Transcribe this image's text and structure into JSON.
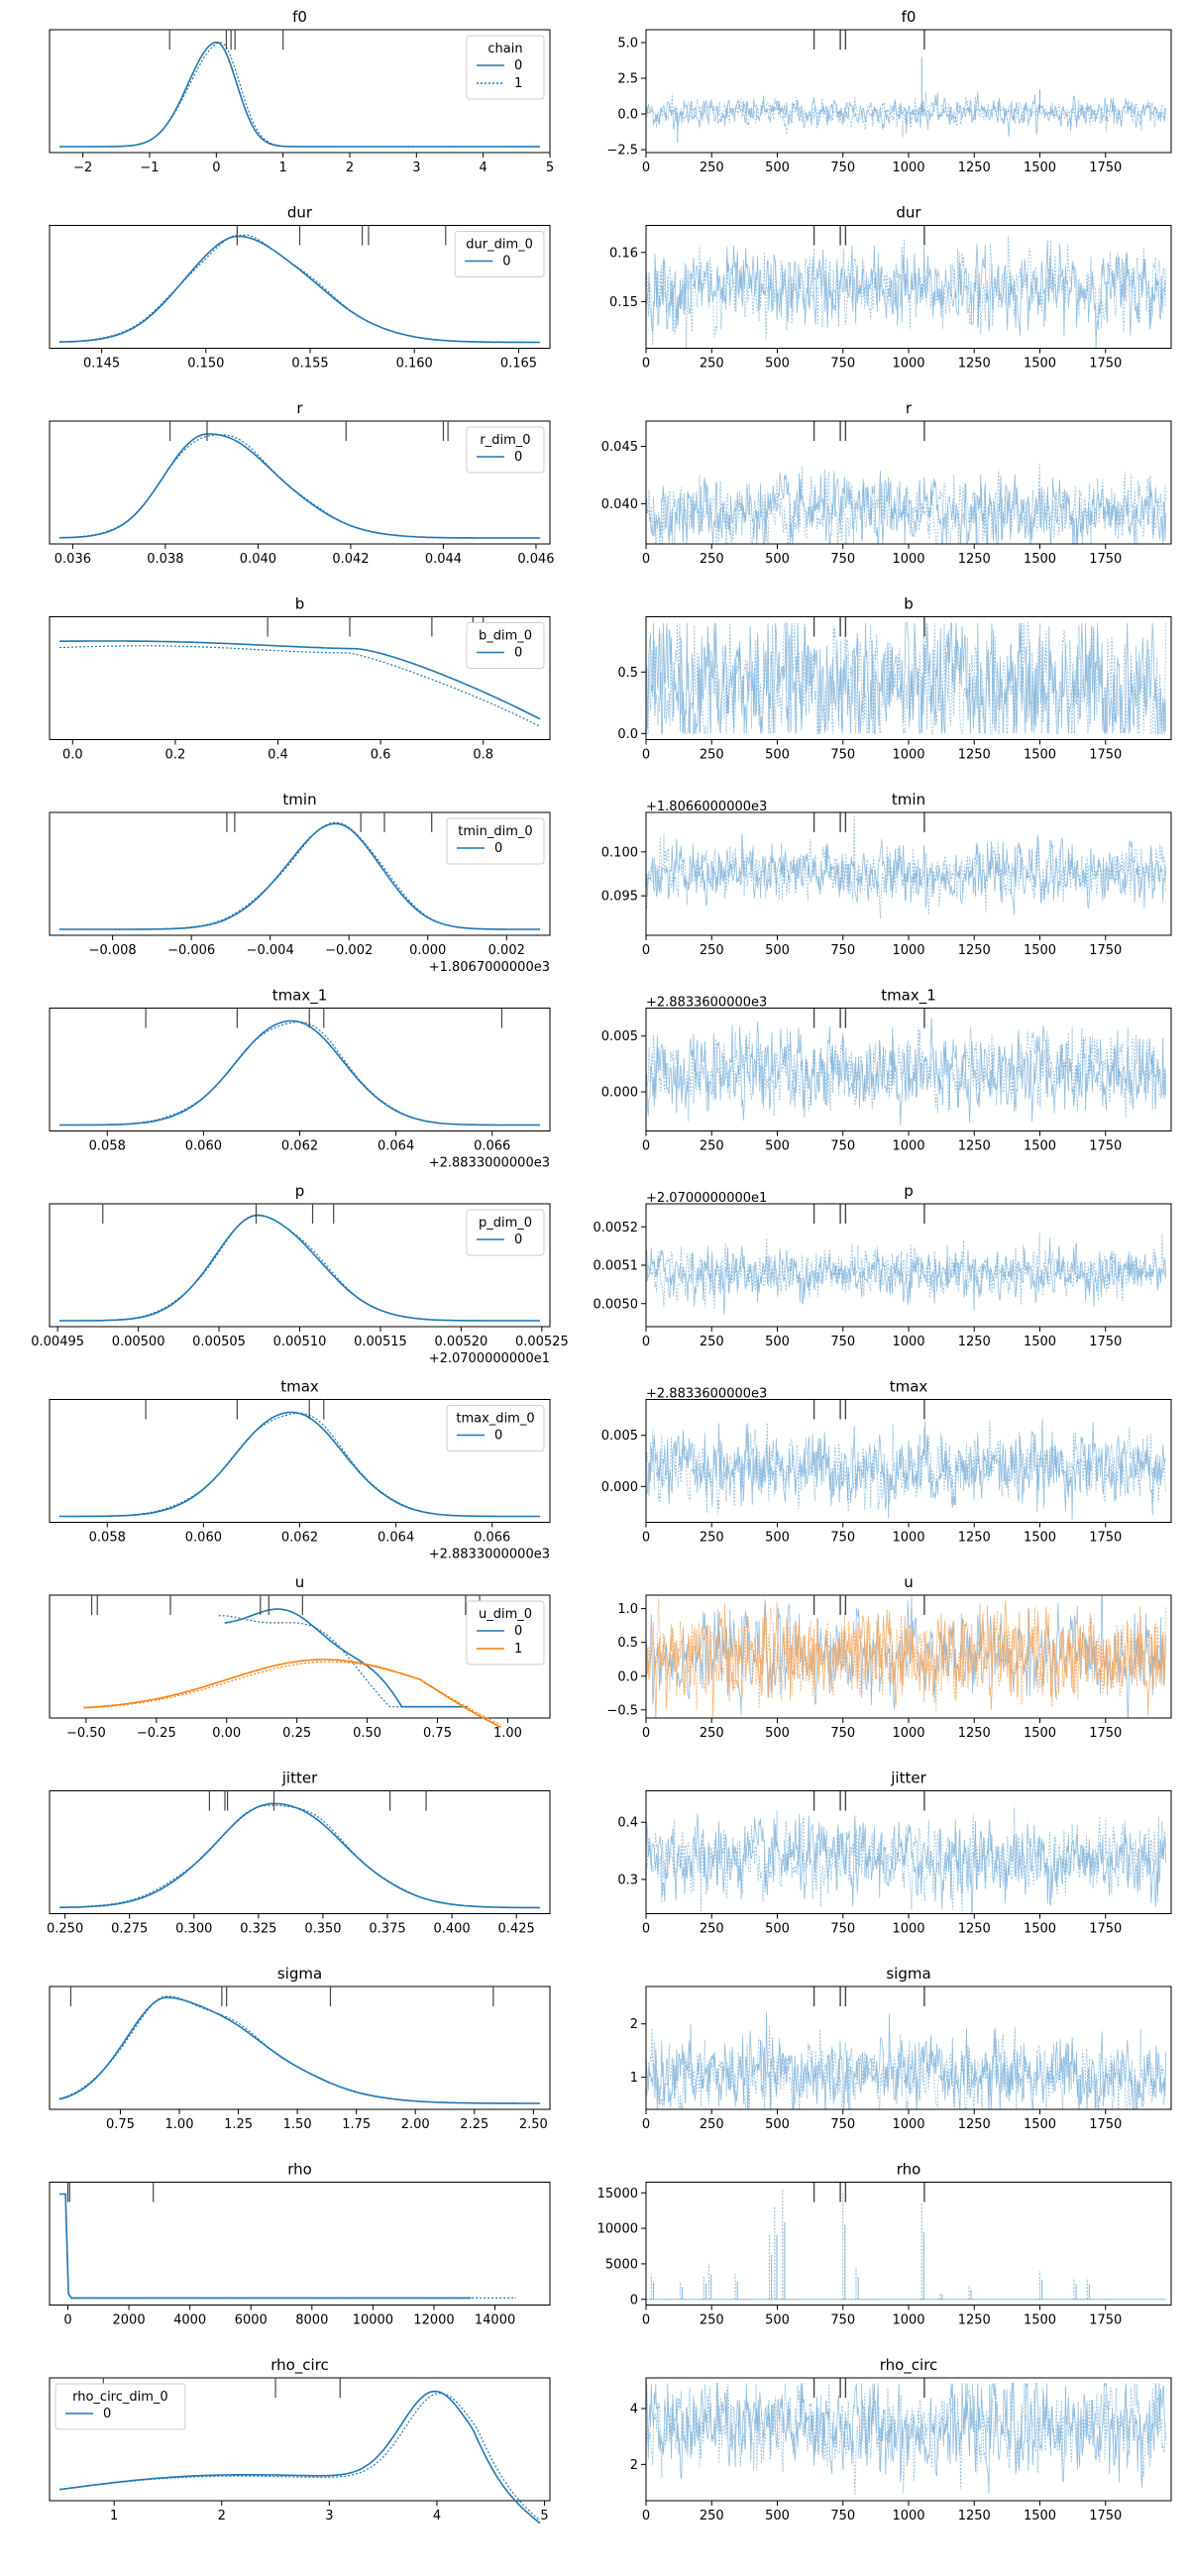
{
  "colors": {
    "c0": "#1f77b4",
    "c1": "#ff7f0e",
    "trace": "#7fb2d9",
    "tick": "#444444"
  },
  "chart_data": [
    {
      "type": "line",
      "name": "f0",
      "title": "f0",
      "kde": {
        "xlim": [
          -2.5,
          5.0
        ],
        "xticks": [
          -2,
          -1,
          0,
          1,
          2,
          3,
          4,
          5
        ],
        "xtick_labels": [
          "−2",
          "−1",
          "0",
          "1",
          "2",
          "3",
          "4",
          "5"
        ],
        "ylim": [
          0,
          1
        ],
        "peak_x": 0.0,
        "sd": 0.42,
        "right_sd": 0.3,
        "ref_x": [
          -0.7,
          0.15,
          0.22,
          0.28,
          1.0
        ],
        "series": [
          {
            "x": [
              -2.4,
              -1.5,
              -1.0,
              -0.5,
              -0.2,
              0.0,
              0.2,
              0.4,
              0.8,
              1.2,
              2.0,
              3.0,
              4.0,
              4.8
            ],
            "y": [
              0,
              0.01,
              0.05,
              0.28,
              0.75,
              1.0,
              0.85,
              0.55,
              0.15,
              0.04,
              0.01,
              0,
              0,
              0
            ]
          }
        ]
      },
      "legend": {
        "title": "chain",
        "entries": [
          "0",
          "1"
        ],
        "pos": "top-right"
      },
      "trace": {
        "xlim": [
          0,
          2000
        ],
        "xticks": [
          0,
          250,
          500,
          750,
          1000,
          1250,
          1500,
          1750
        ],
        "ylim": [
          -2.7,
          5.9
        ],
        "yticks": [
          -2.5,
          0.0,
          2.5,
          5.0
        ],
        "ytick_labels": [
          "−2.5",
          "0.0",
          "2.5",
          "5.0"
        ],
        "mean": 0.1,
        "spread": 0.45,
        "spikes": [
          {
            "x": 1050,
            "y": 4.0
          },
          {
            "x": 120,
            "y": -2.0
          },
          {
            "x": 1500,
            "y": 1.7
          }
        ],
        "ref_x": [
          640,
          740,
          760,
          1060
        ]
      }
    },
    {
      "type": "line",
      "name": "dur",
      "title": "dur",
      "kde": {
        "xlim": [
          0.1425,
          0.1665
        ],
        "xticks": [
          0.145,
          0.15,
          0.155,
          0.16,
          0.165
        ],
        "xtick_labels": [
          "0.145",
          "0.150",
          "0.155",
          "0.160",
          "0.165"
        ],
        "peak_x": 0.1515,
        "sd": 0.0025,
        "right_sd": 0.0035,
        "ref_x": [
          0.1515,
          0.1545,
          0.1575,
          0.1578,
          0.1615
        ]
      },
      "legend": {
        "title": "dur_dim_0",
        "entries": [
          "0"
        ],
        "pos": "top-right"
      },
      "trace": {
        "xlim": [
          0,
          2000
        ],
        "xticks": [
          0,
          250,
          500,
          750,
          1000,
          1250,
          1500,
          1750
        ],
        "ylim": [
          0.1405,
          0.1655
        ],
        "yticks": [
          0.15,
          0.16
        ],
        "ytick_labels": [
          "0.15",
          "0.16"
        ],
        "mean": 0.1525,
        "spread": 0.0035,
        "spikes": [],
        "ref_x": [
          640,
          740,
          760,
          1060
        ]
      }
    },
    {
      "type": "line",
      "name": "r",
      "title": "r",
      "kde": {
        "xlim": [
          0.0355,
          0.0463
        ],
        "xticks": [
          0.036,
          0.038,
          0.04,
          0.042,
          0.044,
          0.046
        ],
        "xtick_labels": [
          "0.036",
          "0.038",
          "0.040",
          "0.042",
          "0.044",
          "0.046"
        ],
        "peak_x": 0.0389,
        "sd": 0.0009,
        "right_sd": 0.0015,
        "ref_x": [
          0.0381,
          0.0389,
          0.0419,
          0.044,
          0.0441
        ]
      },
      "legend": {
        "title": "r_dim_0",
        "entries": [
          "0"
        ],
        "pos": "top-right"
      },
      "trace": {
        "xlim": [
          0,
          2000
        ],
        "xticks": [
          0,
          250,
          500,
          750,
          1000,
          1250,
          1500,
          1750
        ],
        "ylim": [
          0.0365,
          0.0472
        ],
        "yticks": [
          0.04,
          0.045
        ],
        "ytick_labels": [
          "0.040",
          "0.045"
        ],
        "mean": 0.0393,
        "spread": 0.0014,
        "spikes": [],
        "ref_x": [
          640,
          740,
          760,
          1060
        ]
      }
    },
    {
      "type": "line",
      "name": "b",
      "title": "b",
      "kde": {
        "xlim": [
          -0.045,
          0.93
        ],
        "xticks": [
          0.0,
          0.2,
          0.4,
          0.6,
          0.8
        ],
        "xtick_labels": [
          "0.0",
          "0.2",
          "0.4",
          "0.6",
          "0.8"
        ],
        "shape": "flat",
        "ref_x": [
          0.38,
          0.54,
          0.7,
          0.78,
          0.8
        ]
      },
      "legend": {
        "title": "b_dim_0",
        "entries": [
          "0"
        ],
        "pos": "top-right"
      },
      "trace": {
        "xlim": [
          0,
          2000
        ],
        "xticks": [
          0,
          250,
          500,
          750,
          1000,
          1250,
          1500,
          1750
        ],
        "ylim": [
          -0.05,
          0.95
        ],
        "yticks": [
          0.0,
          0.5
        ],
        "ytick_labels": [
          "0.0",
          "0.5"
        ],
        "mean": 0.38,
        "spread": 0.27,
        "clip": [
          0.0,
          0.9
        ],
        "spikes": [],
        "ref_x": [
          640,
          740,
          760,
          1060
        ]
      }
    },
    {
      "type": "line",
      "name": "tmin",
      "title": "tmin",
      "kde": {
        "xlim": [
          -0.0096,
          0.0031
        ],
        "xticks": [
          -0.008,
          -0.006,
          -0.004,
          -0.002,
          0.0,
          0.002
        ],
        "xtick_labels": [
          "−0.008",
          "−0.006",
          "−0.004",
          "−0.002",
          "0.000",
          "0.002"
        ],
        "offset": "+1.8067000000e3",
        "peak_x": -0.0023,
        "sd": 0.0013,
        "right_sd": 0.0011,
        "ref_x": [
          -0.0051,
          -0.0049,
          -0.0017,
          -0.0011,
          0.0001
        ]
      },
      "legend": {
        "title": "tmin_dim_0",
        "entries": [
          "0"
        ],
        "pos": "top-right"
      },
      "trace": {
        "xlim": [
          0,
          2000
        ],
        "xticks": [
          0,
          250,
          500,
          750,
          1000,
          1250,
          1500,
          1750
        ],
        "ylim": [
          0.0905,
          0.1045
        ],
        "yticks": [
          0.095,
          0.1
        ],
        "ytick_labels": [
          "0.095",
          "0.100"
        ],
        "offset": "+1.8066000000e3",
        "mean": 0.0975,
        "spread": 0.0015,
        "spikes": [],
        "ref_x": [
          640,
          740,
          760,
          1060
        ]
      }
    },
    {
      "type": "line",
      "name": "tmax_1",
      "title": "tmax_1",
      "kde": {
        "xlim": [
          0.0568,
          0.0672
        ],
        "xticks": [
          0.058,
          0.06,
          0.062,
          0.064,
          0.066
        ],
        "xtick_labels": [
          "0.058",
          "0.060",
          "0.062",
          "0.064",
          "0.066"
        ],
        "offset": "+2.8833000000e3",
        "peak_x": 0.0618,
        "sd": 0.0011,
        "right_sd": 0.0011,
        "ref_x": [
          0.0588,
          0.0607,
          0.0622,
          0.0625,
          0.0662
        ]
      },
      "legend": null,
      "trace": {
        "xlim": [
          0,
          2000
        ],
        "xticks": [
          0,
          250,
          500,
          750,
          1000,
          1250,
          1500,
          1750
        ],
        "ylim": [
          -0.0035,
          0.0075
        ],
        "yticks": [
          0.0,
          0.005
        ],
        "ytick_labels": [
          "0.000",
          "0.005"
        ],
        "offset": "+2.8833600000e3",
        "mean": 0.0018,
        "spread": 0.0016,
        "spikes": [],
        "ref_x": [
          640,
          740,
          760,
          1060
        ]
      }
    },
    {
      "type": "line",
      "name": "p",
      "title": "p",
      "kde": {
        "xlim": [
          0.004945,
          0.005255
        ],
        "xticks": [
          0.00495,
          0.005,
          0.00505,
          0.0051,
          0.00515,
          0.0052,
          0.00525
        ],
        "xtick_labels": [
          "0.00495",
          "0.00500",
          "0.00505",
          "0.00510",
          "0.00515",
          "0.00520",
          "0.00525"
        ],
        "offset": "+2.0700000000e1",
        "peak_x": 0.005075,
        "sd": 2.8e-05,
        "right_sd": 3.5e-05,
        "ref_x": [
          0.004978,
          0.005073,
          0.005108,
          0.005121
        ]
      },
      "legend": {
        "title": "p_dim_0",
        "entries": [
          "0"
        ],
        "pos": "top-right"
      },
      "trace": {
        "xlim": [
          0,
          2000
        ],
        "xticks": [
          0,
          250,
          500,
          750,
          1000,
          1250,
          1500,
          1750
        ],
        "ylim": [
          0.00494,
          0.00526
        ],
        "yticks": [
          0.005,
          0.0051,
          0.0052
        ],
        "ytick_labels": [
          "0.0050",
          "0.0051",
          "0.0052"
        ],
        "offset": "+2.0700000000e1",
        "mean": 0.00508,
        "spread": 3e-05,
        "spikes": [],
        "ref_x": [
          640,
          740,
          760,
          1060
        ]
      }
    },
    {
      "type": "line",
      "name": "tmax",
      "title": "tmax",
      "kde": {
        "xlim": [
          0.0568,
          0.0672
        ],
        "xticks": [
          0.058,
          0.06,
          0.062,
          0.064,
          0.066
        ],
        "xtick_labels": [
          "0.058",
          "0.060",
          "0.062",
          "0.064",
          "0.066"
        ],
        "offset": "+2.8833000000e3",
        "peak_x": 0.0618,
        "sd": 0.0011,
        "right_sd": 0.0011,
        "ref_x": [
          0.0588,
          0.0607,
          0.0622,
          0.0625
        ]
      },
      "legend": {
        "title": "tmax_dim_0",
        "entries": [
          "0"
        ],
        "pos": "top-right"
      },
      "trace": {
        "xlim": [
          0,
          2000
        ],
        "xticks": [
          0,
          250,
          500,
          750,
          1000,
          1250,
          1500,
          1750
        ],
        "ylim": [
          -0.0035,
          0.0085
        ],
        "yticks": [
          0.0,
          0.005
        ],
        "ytick_labels": [
          "0.000",
          "0.005"
        ],
        "offset": "+2.8833600000e3",
        "mean": 0.0018,
        "spread": 0.0016,
        "spikes": [],
        "ref_x": [
          640,
          740,
          760,
          1060
        ]
      }
    },
    {
      "type": "line",
      "name": "u",
      "title": "u",
      "kde": {
        "xlim": [
          -0.63,
          1.15
        ],
        "xticks": [
          -0.5,
          -0.25,
          0.0,
          0.25,
          0.5,
          0.75,
          1.0
        ],
        "xtick_labels": [
          "−0.50",
          "−0.25",
          "0.00",
          "0.25",
          "0.50",
          "0.75",
          "1.00"
        ],
        "shape": "u",
        "ref_x": [
          -0.48,
          -0.46,
          -0.2,
          0.12,
          0.15,
          0.27,
          0.85,
          0.9
        ]
      },
      "legend": {
        "title": "u_dim_0",
        "entries": [
          "0",
          "1"
        ],
        "pos": "top-right"
      },
      "trace": {
        "xlim": [
          0,
          2000
        ],
        "xticks": [
          0,
          250,
          500,
          750,
          1000,
          1250,
          1500,
          1750
        ],
        "ylim": [
          -0.62,
          1.2
        ],
        "yticks": [
          -0.5,
          0.0,
          0.5,
          1.0
        ],
        "ytick_labels": [
          "−0.5",
          "0.0",
          "0.5",
          "1.0"
        ],
        "mean": 0.3,
        "spread": 0.28,
        "two": true,
        "spikes": [],
        "ref_x": [
          640,
          740,
          760,
          1060
        ]
      }
    },
    {
      "type": "line",
      "name": "jitter",
      "title": "jitter",
      "kde": {
        "xlim": [
          0.244,
          0.438
        ],
        "xticks": [
          0.25,
          0.275,
          0.3,
          0.325,
          0.35,
          0.375,
          0.4,
          0.425
        ],
        "xtick_labels": [
          "0.250",
          "0.275",
          "0.300",
          "0.325",
          "0.350",
          "0.375",
          "0.400",
          "0.425"
        ],
        "peak_x": 0.332,
        "sd": 0.024,
        "right_sd": 0.026,
        "ref_x": [
          0.306,
          0.312,
          0.313,
          0.331,
          0.376,
          0.39
        ]
      },
      "legend": null,
      "trace": {
        "xlim": [
          0,
          2000
        ],
        "xticks": [
          0,
          250,
          500,
          750,
          1000,
          1250,
          1500,
          1750
        ],
        "ylim": [
          0.24,
          0.455
        ],
        "yticks": [
          0.3,
          0.4
        ],
        "ytick_labels": [
          "0.3",
          "0.4"
        ],
        "mean": 0.335,
        "spread": 0.03,
        "spikes": [],
        "ref_x": [
          640,
          740,
          760,
          1060
        ]
      }
    },
    {
      "type": "line",
      "name": "sigma",
      "title": "sigma",
      "kde": {
        "xlim": [
          0.45,
          2.57
        ],
        "xticks": [
          0.75,
          1.0,
          1.25,
          1.5,
          1.75,
          2.0,
          2.25,
          2.5
        ],
        "xtick_labels": [
          "0.75",
          "1.00",
          "1.25",
          "1.50",
          "1.75",
          "2.00",
          "2.25",
          "2.50"
        ],
        "peak_x": 0.95,
        "sd": 0.18,
        "right_sd": 0.38,
        "ref_x": [
          0.54,
          1.18,
          1.2,
          1.64,
          2.33
        ]
      },
      "legend": null,
      "trace": {
        "xlim": [
          0,
          2000
        ],
        "xticks": [
          0,
          250,
          500,
          750,
          1000,
          1250,
          1500,
          1750
        ],
        "ylim": [
          0.4,
          2.7
        ],
        "yticks": [
          1,
          2
        ],
        "ytick_labels": [
          "1",
          "2"
        ],
        "mean": 1.05,
        "spread": 0.32,
        "spikes": [],
        "ref_x": [
          640,
          740,
          760,
          1060
        ]
      }
    },
    {
      "type": "line",
      "name": "rho",
      "title": "rho",
      "kde": {
        "xlim": [
          -600,
          15800
        ],
        "xticks": [
          0,
          2000,
          4000,
          6000,
          8000,
          10000,
          12000,
          14000
        ],
        "xtick_labels": [
          "0",
          "2000",
          "4000",
          "6000",
          "8000",
          "10000",
          "12000",
          "14000"
        ],
        "shape": "spike",
        "ref_x": [
          0,
          60,
          2800
        ]
      },
      "legend": null,
      "trace": {
        "xlim": [
          0,
          2000
        ],
        "xticks": [
          0,
          250,
          500,
          750,
          1000,
          1250,
          1500,
          1750
        ],
        "ylim": [
          -800,
          16500
        ],
        "yticks": [
          0,
          5000,
          10000,
          15000
        ],
        "ytick_labels": [
          "0",
          "5000",
          "10000",
          "15000"
        ],
        "mean": 0,
        "spread": 0,
        "bursts": [
          {
            "x": 520,
            "y": 15500
          },
          {
            "x": 470,
            "y": 9000
          },
          {
            "x": 490,
            "y": 13000
          },
          {
            "x": 750,
            "y": 15000
          },
          {
            "x": 1050,
            "y": 13500
          },
          {
            "x": 800,
            "y": 4500
          },
          {
            "x": 240,
            "y": 5000
          },
          {
            "x": 220,
            "y": 3200
          },
          {
            "x": 340,
            "y": 3600
          },
          {
            "x": 1500,
            "y": 4000
          },
          {
            "x": 1630,
            "y": 3000
          },
          {
            "x": 1680,
            "y": 3000
          },
          {
            "x": 130,
            "y": 2500
          },
          {
            "x": 1230,
            "y": 2000
          },
          {
            "x": 1120,
            "y": 1000
          },
          {
            "x": 20,
            "y": 3500
          }
        ],
        "spikes": [],
        "ref_x": [
          640,
          740,
          760,
          1060
        ]
      }
    },
    {
      "type": "line",
      "name": "rho_circ",
      "title": "rho_circ",
      "kde": {
        "xlim": [
          0.4,
          5.05
        ],
        "xticks": [
          1,
          2,
          3,
          4,
          5
        ],
        "xtick_labels": [
          "1",
          "2",
          "3",
          "4",
          "5"
        ],
        "shape": "leftskew",
        "ref_x": [
          0.9,
          2.5,
          3.1
        ]
      },
      "legend": {
        "title": "rho_circ_dim_0",
        "entries": [
          "0"
        ],
        "pos": "top-left"
      },
      "trace": {
        "xlim": [
          0,
          2000
        ],
        "xticks": [
          0,
          250,
          500,
          750,
          1000,
          1250,
          1500,
          1750
        ],
        "ylim": [
          0.7,
          5.1
        ],
        "yticks": [
          2,
          4
        ],
        "ytick_labels": [
          "2",
          "4"
        ],
        "mean": 3.3,
        "spread": 0.75,
        "clip": [
          0.9,
          4.9
        ],
        "spikes": [],
        "ref_x": [
          640,
          740,
          760,
          1060
        ]
      }
    }
  ]
}
